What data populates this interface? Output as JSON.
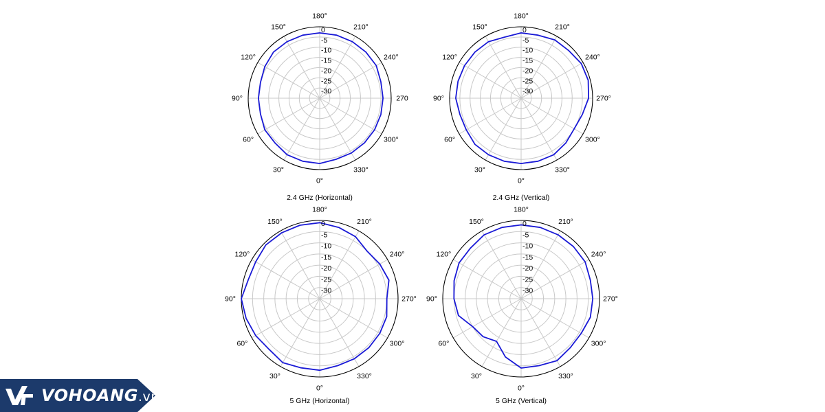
{
  "logo": {
    "brand": "VOHOANG",
    "suffix": ".vn",
    "color": "#1c3a6b"
  },
  "chart_data": [
    {
      "type": "polar",
      "title": "2.4 GHz (Horizontal)",
      "angle_labels": [
        "180°",
        "210°",
        "240°",
        "270",
        "300°",
        "330°",
        "0°",
        "30°",
        "60°",
        "90°",
        "120°",
        "150°"
      ],
      "radial_labels": [
        "0",
        "-5",
        "-10",
        "-15",
        "-20",
        "-25",
        "-30"
      ],
      "rlim": [
        -35,
        0
      ],
      "series": [
        {
          "color": "#1a1ad6",
          "theta": [
            0,
            15,
            30,
            45,
            60,
            75,
            90,
            105,
            120,
            135,
            150,
            165,
            180,
            195,
            210,
            225,
            240,
            255,
            270,
            285,
            300,
            315,
            330,
            345
          ],
          "r": [
            -3,
            -3,
            -3,
            -4,
            -4,
            -5,
            -5,
            -5,
            -4,
            -3,
            -3,
            -3,
            -3,
            -3,
            -3,
            -3,
            -3,
            -4,
            -4,
            -4,
            -4,
            -4,
            -4,
            -4
          ]
        }
      ]
    },
    {
      "type": "polar",
      "title": "2.4 GHz (Vertical)",
      "angle_labels": [
        "180°",
        "210°",
        "240°",
        "270°",
        "300°",
        "330°",
        "0°",
        "30°",
        "60°",
        "90°",
        "120°",
        "150°"
      ],
      "radial_labels": [
        "0",
        "-5",
        "-10",
        "-15",
        "-20",
        "-25",
        "-30"
      ],
      "rlim": [
        -35,
        0
      ],
      "series": [
        {
          "color": "#1a1ad6",
          "theta": [
            0,
            15,
            30,
            45,
            60,
            75,
            90,
            105,
            120,
            135,
            150,
            165,
            180,
            195,
            210,
            225,
            240,
            255,
            270,
            285,
            300,
            315,
            330,
            345
          ],
          "r": [
            -3,
            -3,
            -3,
            -3,
            -4,
            -4,
            -3,
            -3,
            -3,
            -3,
            -3,
            -4,
            -3,
            -3,
            -2,
            -2,
            -1,
            -1,
            -2,
            -4,
            -5,
            -4,
            -3,
            -3
          ]
        }
      ]
    },
    {
      "type": "polar",
      "title": "5 GHz (Horizontal)",
      "angle_labels": [
        "180°",
        "210°",
        "240°",
        "270°",
        "300°",
        "330°",
        "0°",
        "30°",
        "60°",
        "90°",
        "120°",
        "150°"
      ],
      "radial_labels": [
        "0",
        "-5",
        "-10",
        "-15",
        "-20",
        "-25",
        "-30"
      ],
      "rlim": [
        -35,
        0
      ],
      "series": [
        {
          "color": "#1a1ad6",
          "theta": [
            0,
            15,
            30,
            45,
            60,
            75,
            90,
            105,
            120,
            135,
            150,
            165,
            180,
            195,
            210,
            225,
            240,
            255,
            270,
            285,
            300,
            315,
            330,
            345
          ],
          "r": [
            -3,
            -3,
            -2,
            -3,
            -2,
            -1,
            0,
            -2,
            -2,
            -1,
            -1,
            -1,
            -1,
            -2,
            -3,
            -5,
            -4,
            -3,
            -5,
            -4,
            -4,
            -4,
            -4,
            -4
          ]
        }
      ]
    },
    {
      "type": "polar",
      "title": "5 GHz (Vertical)",
      "angle_labels": [
        "180°",
        "210°",
        "240°",
        "270°",
        "300°",
        "330°",
        "0°",
        "30°",
        "60°",
        "90°",
        "120°",
        "150°"
      ],
      "radial_labels": [
        "0",
        "-5",
        "-10",
        "-15",
        "-20",
        "-25",
        "-30"
      ],
      "rlim": [
        -35,
        0
      ],
      "series": [
        {
          "color": "#1a1ad6",
          "theta": [
            0,
            15,
            30,
            45,
            60,
            75,
            90,
            105,
            120,
            135,
            150,
            165,
            180,
            195,
            210,
            225,
            240,
            255,
            270,
            285,
            300,
            315,
            330,
            345
          ],
          "r": [
            -4,
            -8,
            -13,
            -11,
            -10,
            -6,
            -5,
            -4,
            -3,
            -3,
            -2,
            -2,
            -2,
            -2,
            -2,
            -2,
            -2,
            -3,
            -3,
            -3,
            -4,
            -4,
            -3,
            -4
          ]
        }
      ]
    }
  ]
}
